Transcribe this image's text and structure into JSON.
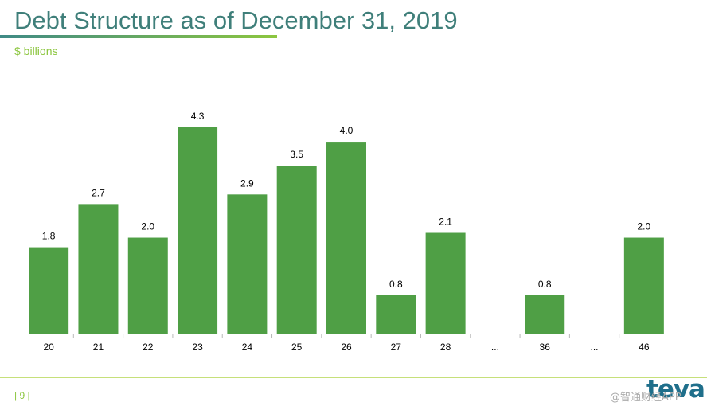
{
  "header": {
    "title": "Debt Structure as of December 31, 2019",
    "subtitle": "$ billions"
  },
  "footer": {
    "page_number": "| 9 |",
    "logo_text": "teva",
    "watermark": "@智通财经APP"
  },
  "colors": {
    "bar": "#4f9f45",
    "title": "#3f7f7a",
    "accent": "#8cc63f"
  },
  "chart_data": {
    "type": "bar",
    "title": "Debt Structure as of December 31, 2019",
    "ylabel": "$ billions",
    "xlabel": "",
    "categories": [
      "20",
      "21",
      "22",
      "23",
      "24",
      "25",
      "26",
      "27",
      "28",
      "...",
      "36",
      "...",
      "46"
    ],
    "values": [
      1.8,
      2.7,
      2.0,
      4.3,
      2.9,
      3.5,
      4.0,
      0.8,
      2.1,
      null,
      0.8,
      null,
      2.0
    ],
    "labels": [
      "1.8",
      "2.7",
      "2.0",
      "4.3",
      "2.9",
      "3.5",
      "4.0",
      "0.8",
      "2.1",
      "",
      "0.8",
      "",
      "2.0"
    ],
    "ylim": [
      0,
      4.3
    ]
  }
}
